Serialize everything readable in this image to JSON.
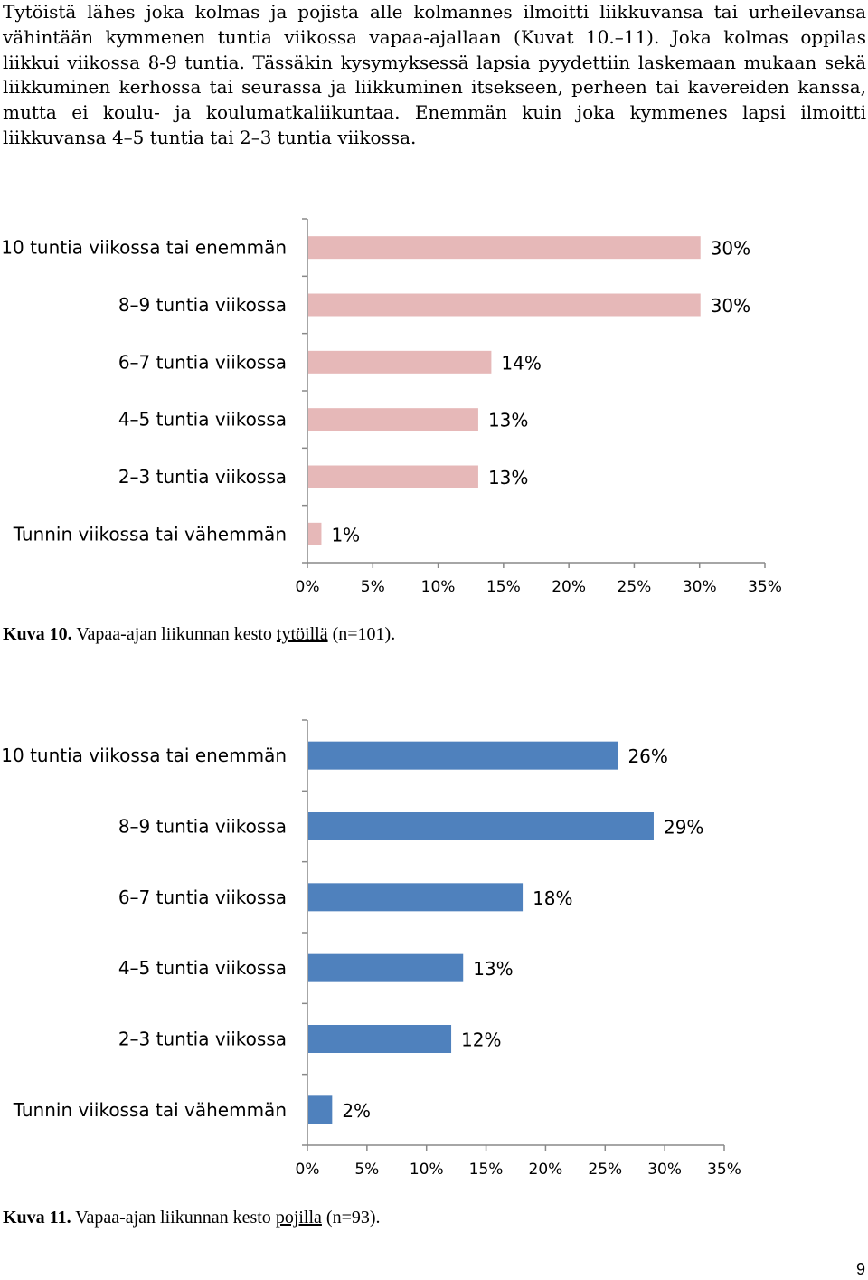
{
  "intro_paragraph": "Tytöistä lähes joka kolmas ja pojista alle kolmannes ilmoitti liikkuvansa tai urheilevansa vähintään kymmenen tuntia viikossa vapaa-ajallaan (Kuvat 10.–11). Joka kolmas oppilas liikkui viikossa 8-9 tuntia. Tässäkin kysymyksessä lapsia pyydettiin laskemaan mukaan sekä liikkuminen kerhossa tai seurassa ja liikkuminen itsekseen, perheen tai kavereiden kanssa, mutta ei koulu- ja koulumatkaliikuntaa. Enemmän kuin joka kymmenes lapsi ilmoitti liikkuvansa 4–5 tuntia tai 2–3 tuntia viikossa.",
  "chart_data": [
    {
      "type": "bar",
      "orientation": "horizontal",
      "categories": [
        "10 tuntia viikossa tai enemmän",
        "8–9 tuntia viikossa",
        "6–7 tuntia viikossa",
        "4–5 tuntia viikossa",
        "2–3 tuntia viikossa",
        "Tunnin viikossa tai vähemmän"
      ],
      "values": [
        30,
        30,
        14,
        13,
        13,
        1
      ],
      "data_labels": [
        "30%",
        "30%",
        "14%",
        "13%",
        "13%",
        "1%"
      ],
      "xlim": [
        0,
        35
      ],
      "x_ticks": [
        "0%",
        "5%",
        "10%",
        "15%",
        "20%",
        "25%",
        "30%",
        "35%"
      ],
      "bar_color": "#e6b8b8",
      "grid": false,
      "caption": {
        "number": "Kuva 10.",
        "text_before": "Vapaa-ajan liikunnan kesto",
        "underlined": "tytöillä",
        "text_after": "(n=101)."
      }
    },
    {
      "type": "bar",
      "orientation": "horizontal",
      "categories": [
        "10 tuntia viikossa tai enemmän",
        "8–9 tuntia viikossa",
        "6–7 tuntia viikossa",
        "4–5 tuntia viikossa",
        "2–3 tuntia viikossa",
        "Tunnin viikossa tai vähemmän"
      ],
      "values": [
        26,
        29,
        18,
        13,
        12,
        2
      ],
      "data_labels": [
        "26%",
        "29%",
        "18%",
        "13%",
        "12%",
        "2%"
      ],
      "xlim": [
        0,
        35
      ],
      "x_ticks": [
        "0%",
        "5%",
        "10%",
        "15%",
        "20%",
        "25%",
        "30%",
        "35%"
      ],
      "bar_color": "#4f81bd",
      "grid": false,
      "caption": {
        "number": "Kuva 11.",
        "text_before": "Vapaa-ajan liikunnan kesto",
        "underlined": "pojilla",
        "text_after": "(n=93)."
      }
    }
  ],
  "page_number": "9"
}
